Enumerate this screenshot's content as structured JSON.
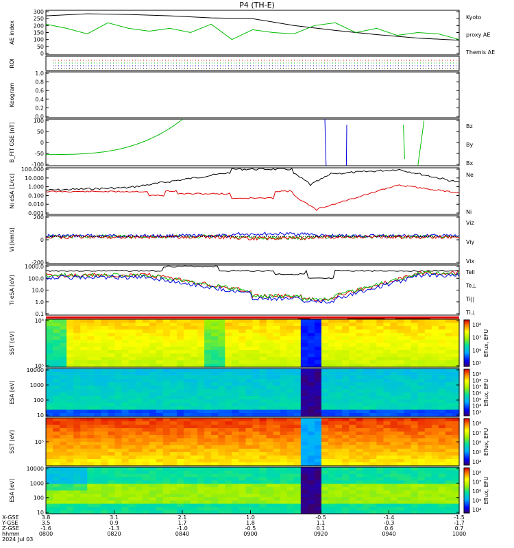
{
  "chart_data": {
    "type": "line",
    "title": "P4 (TH-E)",
    "panels": [
      {
        "id": "ae",
        "ylabel": "AE index",
        "yticks": [
          "300",
          "250",
          "200",
          "150",
          "100",
          "50",
          "0"
        ],
        "legend": [
          {
            "name": "Kyoto",
            "color": "#00bb00"
          },
          {
            "name": "proxy AE",
            "color": "#00bb00"
          },
          {
            "name": "Themis AE",
            "color": "#000000"
          }
        ],
        "series": [
          {
            "name": "Themis AE",
            "color": "#000000",
            "x": [
              0,
              0.1,
              0.2,
              0.3,
              0.4,
              0.5,
              0.6,
              0.7,
              0.8,
              0.9,
              1
            ],
            "y": [
              270,
              285,
              280,
              270,
              255,
              250,
              200,
              165,
              135,
              110,
              95
            ]
          },
          {
            "name": "Kyoto proxy AE",
            "color": "#00bb00",
            "x": [
              0,
              0.05,
              0.1,
              0.15,
              0.2,
              0.25,
              0.3,
              0.35,
              0.4,
              0.45,
              0.5,
              0.55,
              0.6,
              0.65,
              0.7,
              0.75,
              0.8,
              0.85,
              0.9,
              0.95,
              1
            ],
            "y": [
              210,
              180,
              140,
              220,
              180,
              160,
              180,
              150,
              210,
              100,
              170,
              150,
              140,
              200,
              220,
              150,
              180,
              130,
              150,
              140,
              100
            ]
          }
        ]
      },
      {
        "id": "roi",
        "ylabel": "ROI",
        "yticks": []
      },
      {
        "id": "keogram",
        "ylabel": "Keogram",
        "yticks": [
          "1.0",
          "0.8",
          "0.6",
          "0.4",
          "0.2",
          "0.0"
        ]
      },
      {
        "id": "bfit",
        "ylabel": "B_FIT GSE [nT]",
        "yticks": [
          "100",
          "50",
          "0",
          "-50",
          "-100"
        ],
        "legend": [
          {
            "name": "Bz",
            "color": "#dd0000"
          },
          {
            "name": "By",
            "color": "#00bb00"
          },
          {
            "name": "Bx",
            "color": "#0000dd"
          }
        ]
      },
      {
        "id": "ni",
        "ylabel": "Ni eSA [1/cc]",
        "yticks": [
          "100.000",
          "10.000",
          "1.000",
          "0.100",
          "0.010",
          "0.001"
        ],
        "legend": [
          {
            "name": "Ne",
            "color": "#dd0000"
          },
          {
            "name": "Ni",
            "color": "#000000"
          }
        ]
      },
      {
        "id": "vi",
        "ylabel": "Vi [km/s]",
        "yticks": [
          "200",
          "0",
          "-200"
        ],
        "legend": [
          {
            "name": "Viz",
            "color": "#dd0000"
          },
          {
            "name": "Viy",
            "color": "#00bb00"
          },
          {
            "name": "Vix",
            "color": "#0000dd"
          }
        ]
      },
      {
        "id": "ti",
        "ylabel": "Ti eSA [eV]",
        "yticks": [
          "1000.0",
          "100.0",
          "10.0",
          "1.0",
          "0.1"
        ],
        "legend": [
          {
            "name": "Tell",
            "color": "#000000"
          },
          {
            "name": "Te⊥",
            "color": "#dd0000"
          },
          {
            "name": "Ti||",
            "color": "#00bb00"
          },
          {
            "name": "Ti⊥",
            "color": "#0000dd"
          }
        ]
      },
      {
        "id": "sst_e",
        "ylabel": "SST [eV]",
        "yticks": [
          "10⁶",
          "10⁵"
        ],
        "cbar_label": "Eflux, EFU",
        "cbar_ticks": [
          "10⁸",
          "10⁷",
          "10⁶",
          "10⁵"
        ]
      },
      {
        "id": "esa_e",
        "ylabel": "ESA [eV]",
        "yticks": [
          "10000",
          "1000",
          "100",
          "10"
        ],
        "cbar_label": "Eflux, EFU",
        "cbar_ticks": [
          "10⁹",
          "10⁸",
          "10⁷",
          "10⁶",
          "10⁵",
          "10⁴",
          "10³"
        ]
      },
      {
        "id": "sst_i",
        "ylabel": "SST [eV]",
        "yticks": [
          "10⁵"
        ],
        "cbar_label": "Eflux, EFU",
        "cbar_ticks": [
          "10⁸",
          "10⁷",
          "10⁶",
          "10⁵",
          "10⁴"
        ]
      },
      {
        "id": "esa_i",
        "ylabel": "ESA [eV]",
        "yticks": [
          "10000",
          "1000",
          "100",
          "10"
        ],
        "cbar_label": "Eflux, EFU",
        "cbar_ticks": [
          "10⁸",
          "10⁷",
          "10⁶",
          "10⁵",
          "10⁴"
        ]
      }
    ],
    "xaxis": {
      "row_labels": [
        "X-GSE",
        "Y-GSE",
        "Z-GSE",
        "hhmm",
        "2024 Jul 03"
      ],
      "columns": [
        {
          "x": 0.0,
          "values": [
            "3.8",
            "3.5",
            "-1.6",
            "0800"
          ]
        },
        {
          "x": 0.165,
          "values": [
            "3.1",
            "0.9",
            "-1.3",
            "0820"
          ]
        },
        {
          "x": 0.33,
          "values": [
            "2.1",
            "1.7",
            "-1.0",
            "0840"
          ]
        },
        {
          "x": 0.495,
          "values": [
            "1.0",
            "1.8",
            "-0.5",
            "0900"
          ]
        },
        {
          "x": 0.665,
          "values": [
            "-0.5",
            "1.1",
            "0.1",
            "0920"
          ]
        },
        {
          "x": 0.83,
          "values": [
            "-1.4",
            "-0.3",
            "0.6",
            "0940"
          ]
        },
        {
          "x": 1.0,
          "values": [
            "-1.5",
            "-1.7",
            "0.7",
            "1000"
          ]
        }
      ]
    }
  }
}
